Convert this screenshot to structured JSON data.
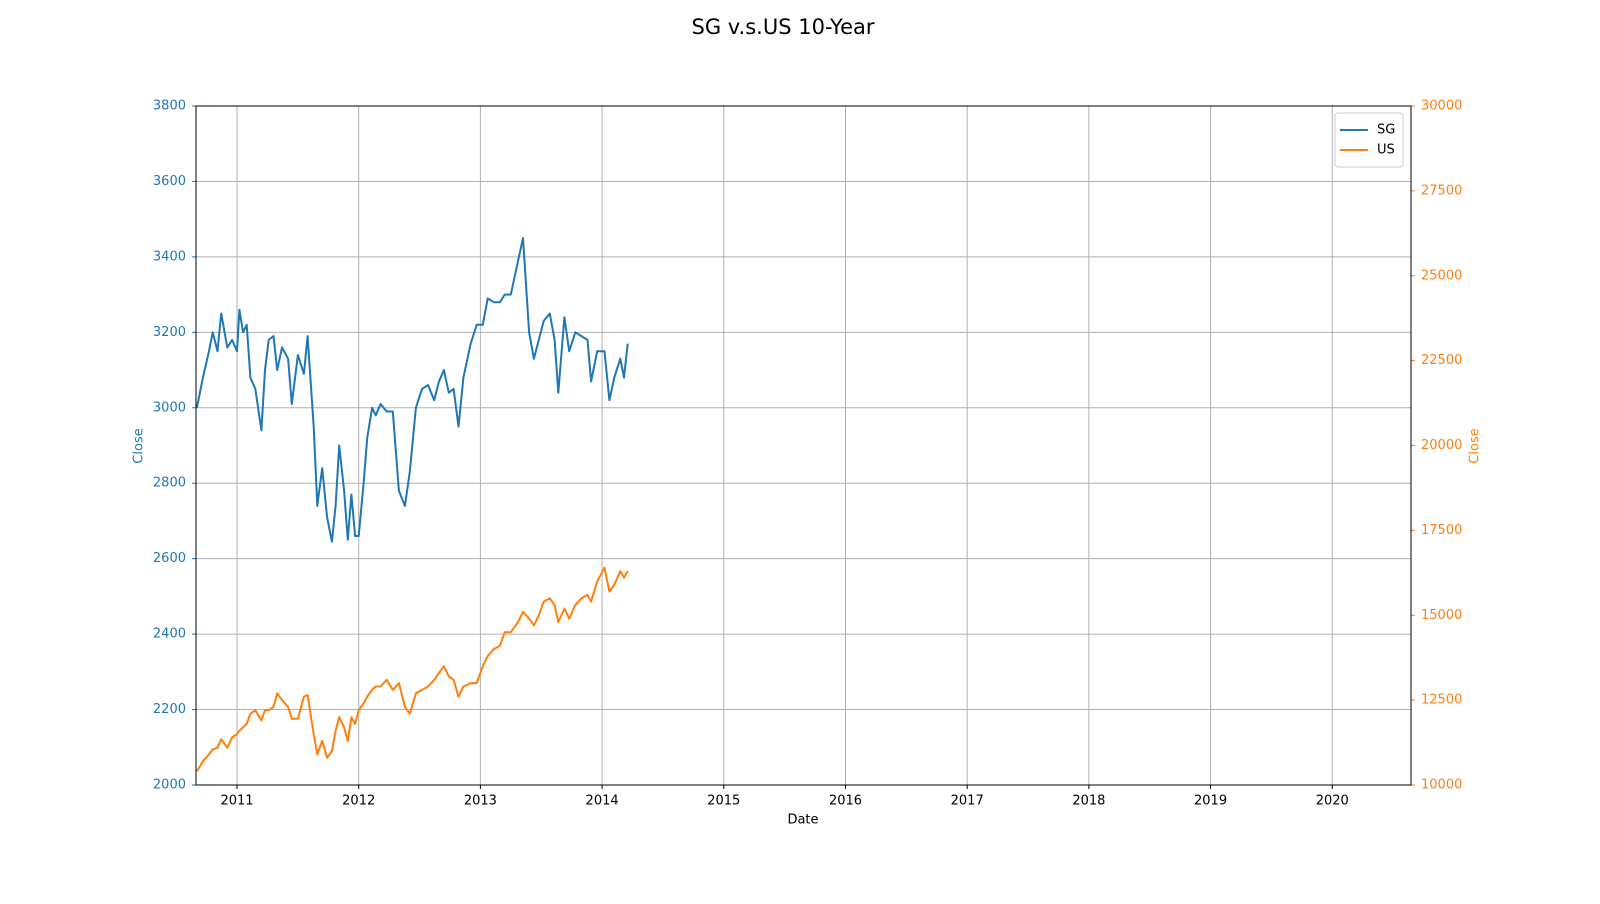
{
  "chart_data": {
    "type": "line",
    "title": "SG v.s.US 10-Year",
    "xlabel": "Date",
    "ylabel": "Close",
    "y2label": "Close",
    "x": [
      2010.67,
      2010.72,
      2010.77,
      2010.8,
      2010.84,
      2010.87,
      2010.92,
      2010.96,
      2011.0,
      2011.02,
      2011.05,
      2011.08,
      2011.11,
      2011.15,
      2011.2,
      2011.23,
      2011.26,
      2011.3,
      2011.33,
      2011.37,
      2011.42,
      2011.45,
      2011.5,
      2011.55,
      2011.58,
      2011.63,
      2011.66,
      2011.7,
      2011.74,
      2011.78,
      2011.81,
      2011.84,
      2011.88,
      2011.91,
      2011.94,
      2011.97,
      2012.0,
      2012.04,
      2012.07,
      2012.11,
      2012.14,
      2012.18,
      2012.23,
      2012.28,
      2012.33,
      2012.38,
      2012.42,
      2012.47,
      2012.52,
      2012.57,
      2012.62,
      2012.66,
      2012.7,
      2012.74,
      2012.78,
      2012.82,
      2012.86,
      2012.92,
      2012.97,
      2013.02,
      2013.06,
      2013.11,
      2013.16,
      2013.2,
      2013.25,
      2013.31,
      2013.35,
      2013.4,
      2013.44,
      2013.48,
      2013.52,
      2013.57,
      2013.61,
      2013.64,
      2013.69,
      2013.73,
      2013.78,
      2013.83,
      2013.88,
      2013.91,
      2013.96,
      2014.02,
      2014.06,
      2014.1,
      2014.15,
      2014.18,
      2014.21
    ],
    "series": [
      {
        "name": "SG",
        "color": "#1f77b4",
        "values": [
          3000,
          3080,
          3150,
          3200,
          3150,
          3250,
          3160,
          3180,
          3150,
          3260,
          3200,
          3220,
          3080,
          3050,
          2940,
          3100,
          3180,
          3190,
          3100,
          3160,
          3130,
          3010,
          3140,
          3090,
          3190,
          2950,
          2740,
          2840,
          2710,
          2645,
          2740,
          2900,
          2780,
          2650,
          2770,
          2660,
          2660,
          2800,
          2920,
          3000,
          2980,
          3010,
          2990,
          2990,
          2780,
          2740,
          2830,
          3000,
          3050,
          3060,
          3020,
          3070,
          3100,
          3040,
          3050,
          2950,
          3080,
          3170,
          3220,
          3220,
          3290,
          3280,
          3280,
          3300,
          3300,
          3390,
          3450,
          3200,
          3130,
          3180,
          3230,
          3250,
          3180,
          3040,
          3240,
          3150,
          3200,
          3190,
          3180,
          3070,
          3150,
          3150,
          3020,
          3080,
          3130,
          3080,
          3170
        ]
      },
      {
        "name": "US",
        "color": "#ff7f0e",
        "axis": "y2",
        "values": [
          10400,
          10700,
          10900,
          11050,
          11100,
          11350,
          11100,
          11400,
          11500,
          11600,
          11700,
          11800,
          12100,
          12200,
          11900,
          12200,
          12200,
          12300,
          12700,
          12500,
          12300,
          11950,
          11950,
          12600,
          12650,
          11500,
          10900,
          11300,
          10800,
          11000,
          11600,
          12000,
          11700,
          11300,
          12000,
          11800,
          12200,
          12400,
          12600,
          12800,
          12900,
          12900,
          13100,
          12800,
          13000,
          12300,
          12100,
          12700,
          12800,
          12900,
          13100,
          13300,
          13500,
          13200,
          13100,
          12600,
          12900,
          13000,
          13000,
          13500,
          13800,
          14000,
          14100,
          14500,
          14500,
          14800,
          15100,
          14900,
          14700,
          15000,
          15400,
          15500,
          15300,
          14800,
          15200,
          14900,
          15300,
          15500,
          15600,
          15400,
          16000,
          16400,
          15700,
          15900,
          16300,
          16100,
          16300
        ]
      }
    ],
    "xlim": [
      2010.663,
      2020.647
    ],
    "xticks": [
      2011,
      2012,
      2013,
      2014,
      2015,
      2016,
      2017,
      2018,
      2019,
      2020
    ],
    "ylim": [
      2000,
      3800
    ],
    "yticks": [
      2000,
      2200,
      2400,
      2600,
      2800,
      3000,
      3200,
      3400,
      3600,
      3800
    ],
    "y2lim": [
      10000,
      30000
    ],
    "y2ticks": [
      10000,
      12500,
      15000,
      17500,
      20000,
      22500,
      25000,
      27500,
      30000
    ],
    "grid": true,
    "legend": "upper right"
  }
}
